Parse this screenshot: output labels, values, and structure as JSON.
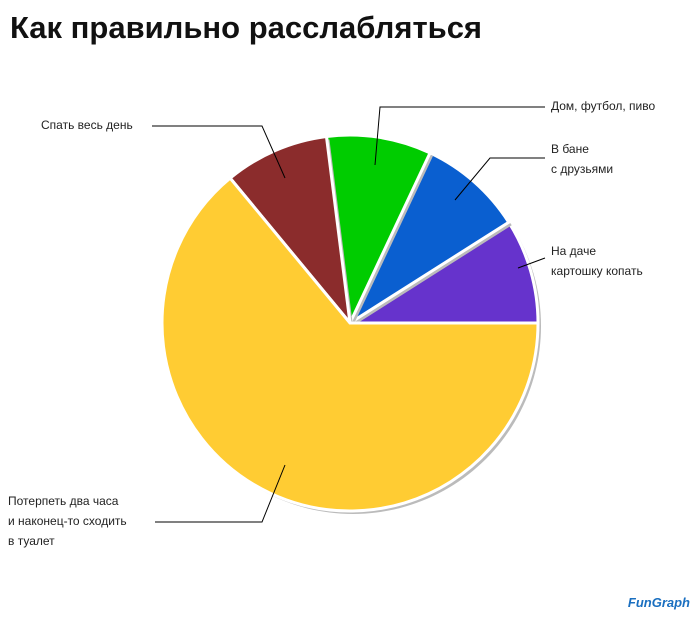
{
  "chart_data": {
    "type": "pie",
    "title": "Как правильно расслабляться",
    "categories": [
      "На даче\nкартошку копать",
      "В бане\nс друзьями",
      "Дом, футбол, пиво",
      "Спать весь день",
      "Потерпеть два часа\nи наконец-то сходить\nв туалет"
    ],
    "values": [
      9,
      9,
      9,
      9,
      64
    ],
    "colors": [
      "#6633cc",
      "#0a5fd0",
      "#00cc00",
      "#8b2c2c",
      "#ffcc33"
    ],
    "source": "FunGraph"
  }
}
